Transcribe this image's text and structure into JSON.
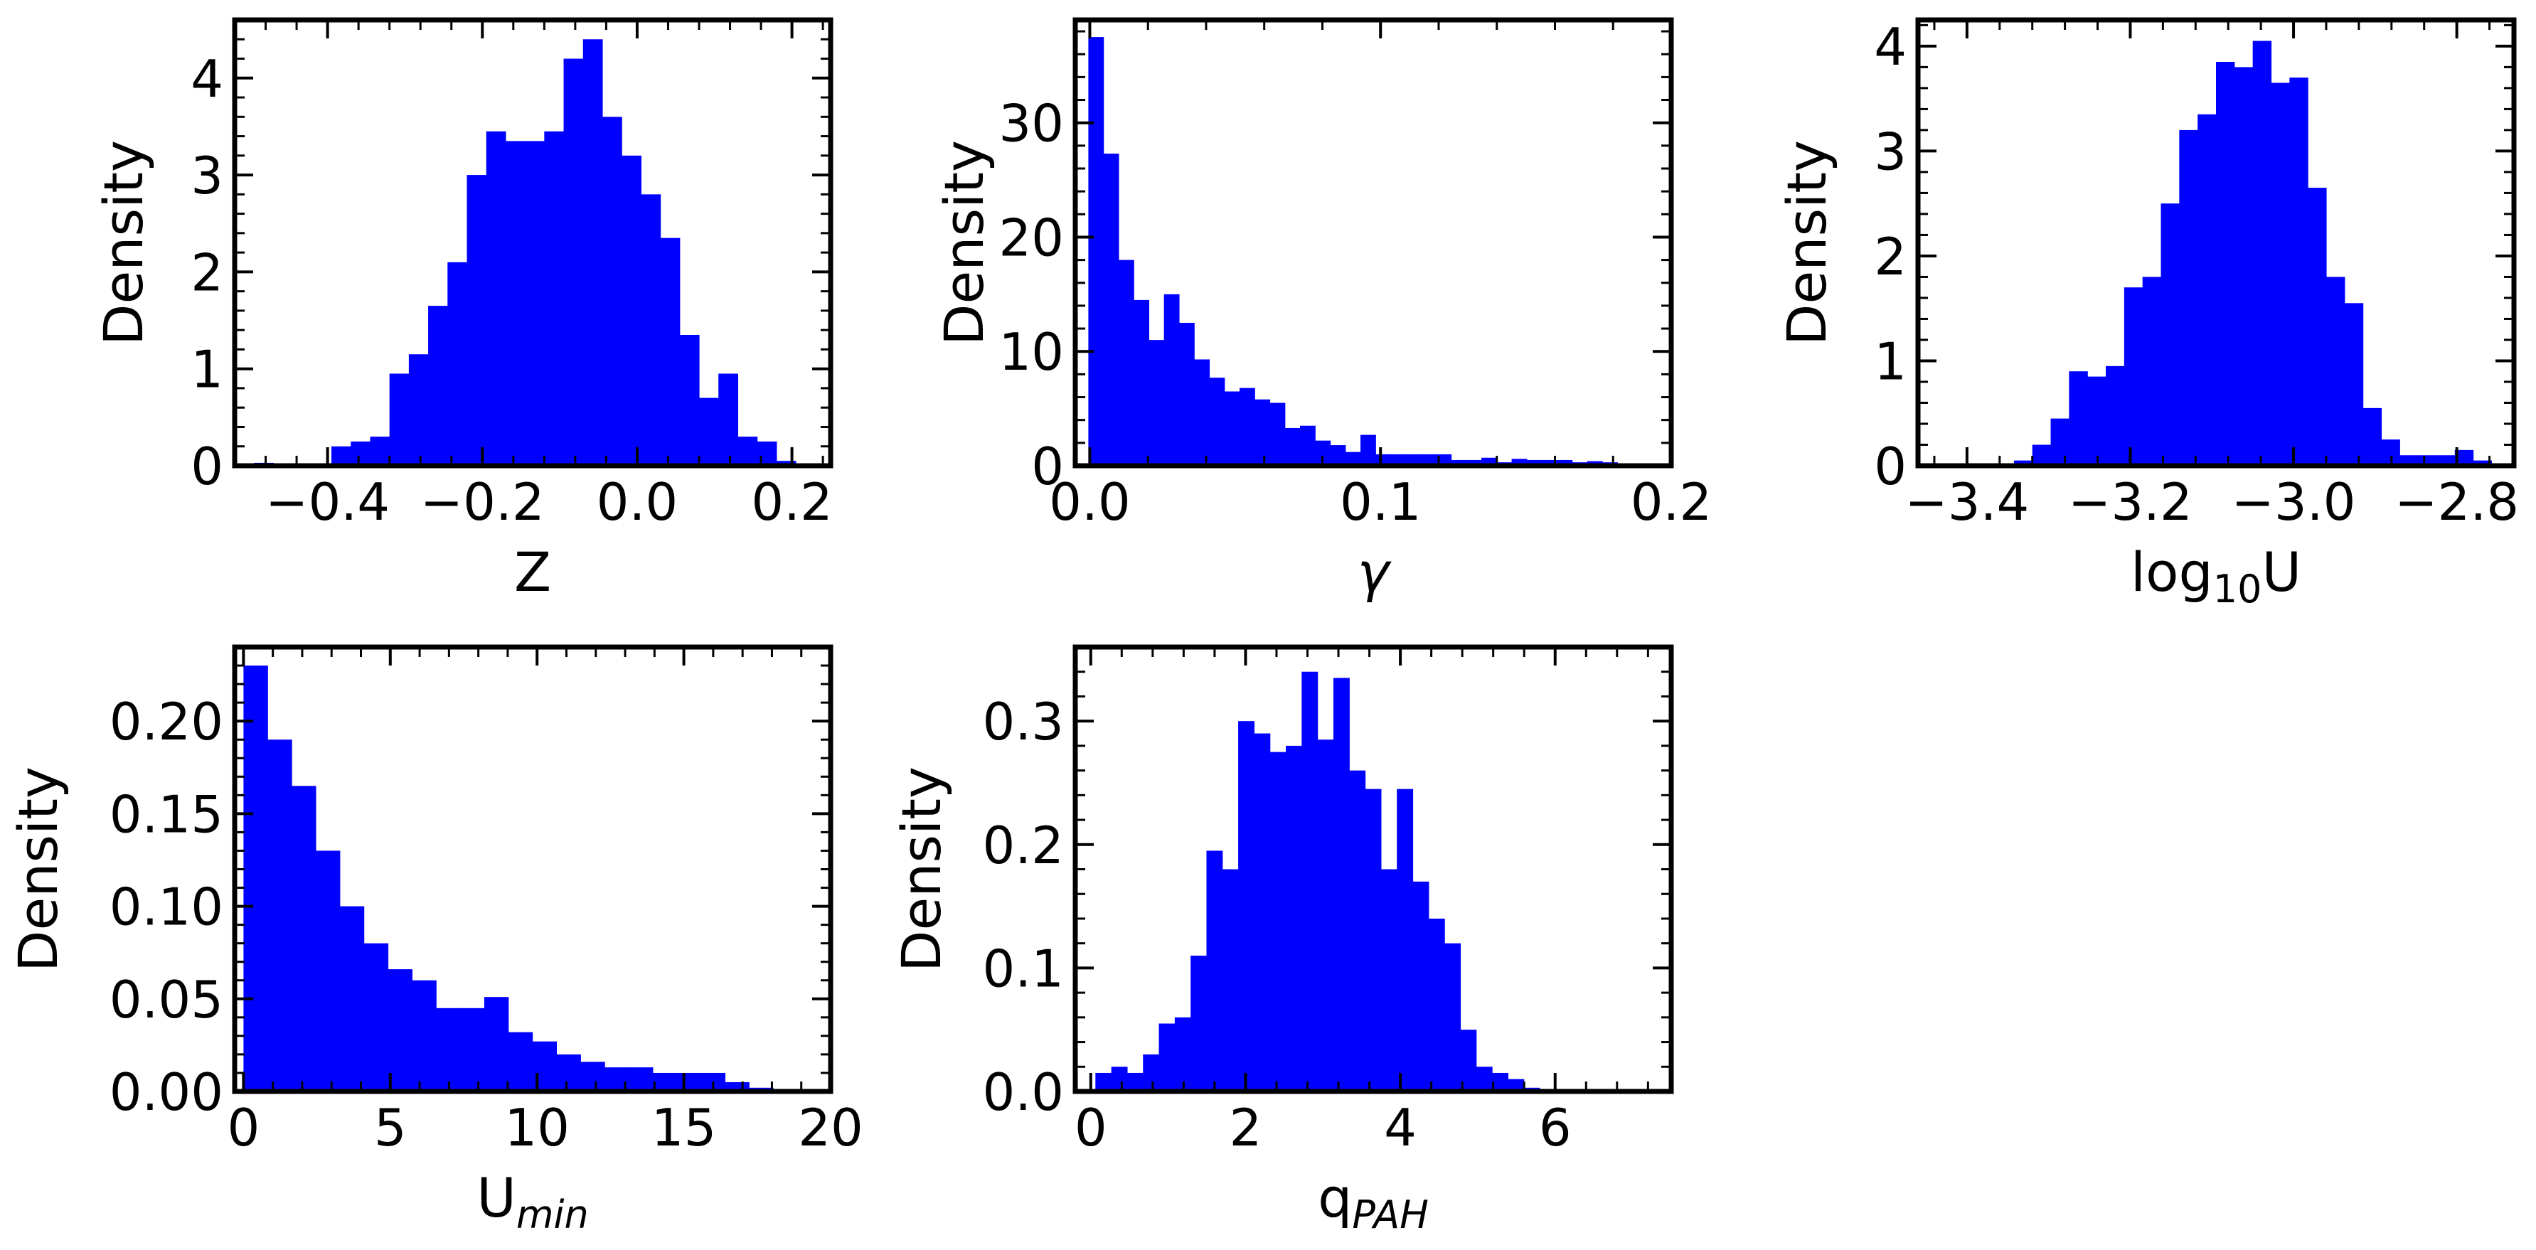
{
  "figure": {
    "bar_color": "#0000ff",
    "frame_color": "#000000",
    "background": "#ffffff"
  },
  "chart_data": [
    {
      "type": "bar",
      "subtype": "histogram",
      "xlabel": "Z",
      "ylabel": "Density",
      "xlim": [
        -0.52,
        0.25
      ],
      "ylim": [
        0,
        4.6
      ],
      "xticks": [
        -0.4,
        -0.2,
        0.0,
        0.2
      ],
      "xtick_labels": [
        "−0.4",
        "−0.2",
        "0.0",
        "0.2"
      ],
      "yticks": [
        0,
        1,
        2,
        3,
        4
      ],
      "ytick_labels": [
        "0",
        "1",
        "2",
        "3",
        "4"
      ],
      "bin_start": -0.52,
      "bin_width": 0.025,
      "values": [
        0.02,
        0.03,
        0.02,
        0.02,
        0.02,
        0.2,
        0.25,
        0.3,
        0.95,
        1.15,
        1.65,
        2.1,
        3.0,
        3.45,
        3.35,
        3.35,
        3.45,
        4.2,
        4.4,
        3.6,
        3.2,
        2.8,
        2.35,
        1.35,
        0.7,
        0.95,
        0.3,
        0.25,
        0.05,
        0.02,
        0.02
      ]
    },
    {
      "type": "bar",
      "subtype": "histogram",
      "xlabel": "γ",
      "ylabel": "Density",
      "xlim": [
        -0.005,
        0.2
      ],
      "ylim": [
        0,
        39
      ],
      "xticks": [
        0.0,
        0.1,
        0.2
      ],
      "xtick_labels": [
        "0.0",
        "0.1",
        "0.2"
      ],
      "yticks": [
        0,
        10,
        20,
        30
      ],
      "ytick_labels": [
        "0",
        "10",
        "20",
        "30"
      ],
      "bin_start": -0.0005,
      "bin_width": 0.0052,
      "values": [
        37.5,
        27.3,
        18.0,
        14.5,
        11.0,
        15.0,
        12.5,
        9.3,
        7.7,
        6.5,
        6.8,
        5.8,
        5.5,
        3.3,
        3.5,
        2.2,
        1.8,
        1.2,
        2.7,
        1.0,
        1.0,
        1.0,
        1.0,
        1.0,
        0.5,
        0.5,
        0.7,
        0.3,
        0.6,
        0.5,
        0.5,
        0.5,
        0.3,
        0.4,
        0.3,
        0.2
      ]
    },
    {
      "type": "bar",
      "subtype": "histogram",
      "xlabel": "log10U",
      "xlabel_text": "log",
      "xlabel_sub": "10",
      "xlabel_tail": "U",
      "ylabel": "Density",
      "xlim": [
        -3.46,
        -2.73
      ],
      "ylim": [
        0,
        4.25
      ],
      "xticks": [
        -3.4,
        -3.2,
        -3.0,
        -2.8
      ],
      "xtick_labels": [
        "−3.4",
        "−3.2",
        "−3.0",
        "−2.8"
      ],
      "yticks": [
        0,
        1,
        2,
        3,
        4
      ],
      "ytick_labels": [
        "0",
        "1",
        "2",
        "3",
        "4"
      ],
      "bin_start": -3.455,
      "bin_width": 0.0225,
      "values": [
        0.02,
        0.02,
        0.02,
        0.02,
        0.02,
        0.05,
        0.2,
        0.45,
        0.9,
        0.85,
        0.95,
        1.7,
        1.8,
        2.5,
        3.2,
        3.35,
        3.85,
        3.8,
        4.05,
        3.65,
        3.7,
        2.65,
        1.8,
        1.55,
        0.55,
        0.25,
        0.1,
        0.1,
        0.1,
        0.15,
        0.05
      ]
    },
    {
      "type": "bar",
      "subtype": "histogram",
      "xlabel": "Umin",
      "xlabel_text": "U",
      "xlabel_sub": "min",
      "ylabel": "Density",
      "xlim": [
        -0.3,
        20
      ],
      "ylim": [
        0,
        0.24
      ],
      "xticks": [
        0,
        5,
        10,
        15,
        20
      ],
      "xtick_labels": [
        "0",
        "5",
        "10",
        "15",
        "20"
      ],
      "yticks": [
        0.0,
        0.05,
        0.1,
        0.15,
        0.2
      ],
      "ytick_labels": [
        "0.00",
        "0.05",
        "0.10",
        "0.15",
        "0.20"
      ],
      "bin_start": 0,
      "bin_width": 0.82,
      "values": [
        0.23,
        0.19,
        0.165,
        0.13,
        0.1,
        0.08,
        0.066,
        0.06,
        0.045,
        0.045,
        0.051,
        0.032,
        0.027,
        0.02,
        0.016,
        0.013,
        0.013,
        0.01,
        0.01,
        0.01,
        0.005,
        0.002
      ]
    },
    {
      "type": "bar",
      "subtype": "histogram",
      "xlabel": "qPAH",
      "xlabel_text": "q",
      "xlabel_sub": "PAH",
      "ylabel": "Density",
      "xlim": [
        -0.2,
        7.5
      ],
      "ylim": [
        0,
        0.36
      ],
      "xticks": [
        0,
        2,
        4,
        6
      ],
      "xtick_labels": [
        "0",
        "2",
        "4",
        "6"
      ],
      "yticks": [
        0.0,
        0.1,
        0.2,
        0.3
      ],
      "ytick_labels": [
        "0.0",
        "0.1",
        "0.2",
        "0.3"
      ],
      "bin_start": 0.06,
      "bin_width": 0.205,
      "values": [
        0.015,
        0.02,
        0.015,
        0.03,
        0.055,
        0.06,
        0.11,
        0.195,
        0.18,
        0.3,
        0.29,
        0.275,
        0.28,
        0.34,
        0.285,
        0.335,
        0.26,
        0.245,
        0.18,
        0.245,
        0.17,
        0.14,
        0.12,
        0.05,
        0.02,
        0.015,
        0.01,
        0.003
      ]
    }
  ]
}
